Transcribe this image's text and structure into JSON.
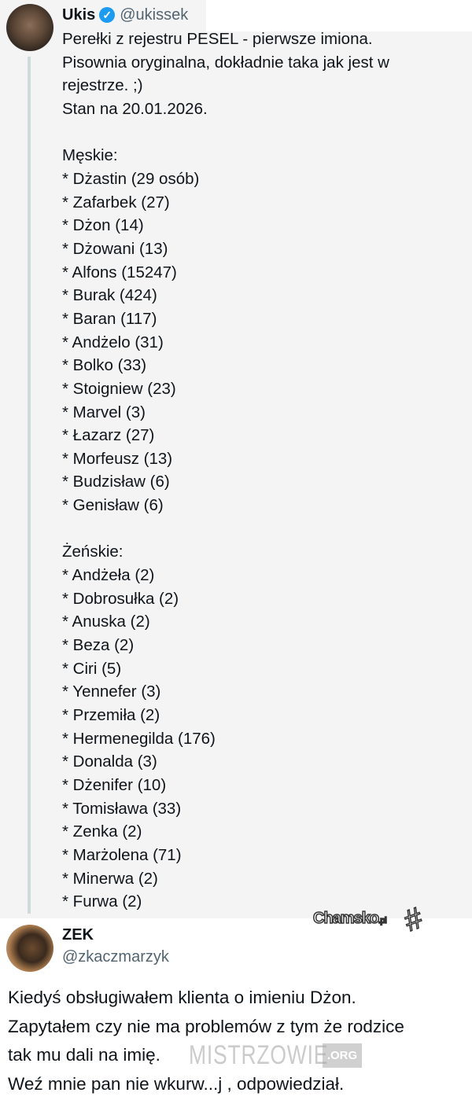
{
  "tweet1": {
    "name": "Ukis",
    "verified_icon": "verified-badge-icon",
    "handle": "@ukissek",
    "lines": [
      "Perełki z rejestru PESEL - pierwsze imiona.",
      "Pisownia oryginalna, dokładnie taka jak jest w",
      "rejestrze. ;)",
      "Stan na 20.01.2026.",
      "",
      "Męskie:",
      "* Dżastin (29 osób)",
      "* Zafarbek (27)",
      "* Dżon (14)",
      "* Dżowani (13)",
      "* Alfons (15247)",
      "* Burak (424)",
      "* Baran (117)",
      "* Andżelo (31)",
      "* Bolko (33)",
      "* Stoigniew (23)",
      "* Marvel (3)",
      "* Łazarz (27)",
      "* Morfeusz (13)",
      "* Budzisław (6)",
      "* Genisław (6)",
      "",
      "Żeńskie:",
      "* Andżeła (2)",
      "* Dobrosułka (2)",
      "* Anuska (2)",
      "* Beza (2)",
      "* Ciri (5)",
      "* Yennefer (3)",
      "* Przemiła (2)",
      "* Hermenegilda (176)",
      "* Donalda (3)",
      "* Dżenifer (10)",
      "* Tomisława (33)",
      "* Zenka (2)",
      "* Marżolena (71)",
      "* Minerwa (2)",
      "* Furwa (2)"
    ]
  },
  "tweet2": {
    "name": "ZEK",
    "handle": "@zkaczmarzyk",
    "lines": [
      "Kiedyś obsługiwałem klienta o imieniu Dżon.",
      "Zapytałem czy nie ma problemów z tym że rodzice",
      "tak mu dali na imię.",
      "Weź mnie pan nie wkurw...j , odpowiedział."
    ]
  },
  "watermarks": {
    "chamsko": "Chamsko",
    "chamsko_tld": ".pl",
    "mistrzowie": "MISTRZOWIE",
    "mistrzowie_tld": ".ORG"
  },
  "colors": {
    "verified": "#1d9bf0",
    "handle": "#536471",
    "background_top": "#f4f4f4"
  }
}
